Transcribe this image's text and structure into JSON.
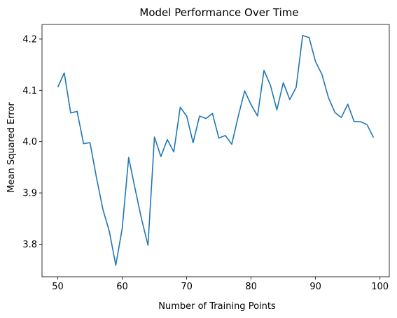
{
  "chart_data": {
    "type": "line",
    "title": "Model Performance Over Time",
    "xlabel": "Number of Training Points",
    "ylabel": "Mean Squared Error",
    "xlim": [
      47.55,
      101.45
    ],
    "ylim": [
      3.7365,
      4.2285
    ],
    "xticks": [
      50,
      60,
      70,
      80,
      90,
      100
    ],
    "yticks": [
      3.8,
      3.9,
      4.0,
      4.1,
      4.2
    ],
    "grid": false,
    "line_color": "#1f77b4",
    "series": [
      {
        "x": [
          50,
          51,
          52,
          53,
          54,
          55,
          56,
          57,
          58,
          59,
          60,
          61,
          62,
          63,
          64,
          65,
          66,
          67,
          68,
          69,
          70,
          71,
          72,
          73,
          74,
          75,
          76,
          77,
          78,
          79,
          80,
          81,
          82,
          83,
          84,
          85,
          86,
          87,
          88,
          89,
          90,
          91,
          92,
          93,
          94,
          95,
          96,
          97,
          98,
          99
        ],
        "values": [
          4.106,
          4.134,
          4.056,
          4.059,
          3.996,
          3.998,
          3.93,
          3.868,
          3.825,
          3.759,
          3.831,
          3.969,
          3.908,
          3.849,
          3.798,
          4.009,
          3.971,
          4.004,
          3.98,
          4.067,
          4.05,
          3.998,
          4.05,
          4.045,
          4.055,
          4.007,
          4.012,
          3.995,
          4.049,
          4.099,
          4.072,
          4.05,
          4.139,
          4.11,
          4.062,
          4.115,
          4.082,
          4.106,
          4.207,
          4.203,
          4.156,
          4.131,
          4.086,
          4.057,
          4.047,
          4.073,
          4.039,
          4.039,
          4.033,
          4.008
        ]
      }
    ]
  }
}
